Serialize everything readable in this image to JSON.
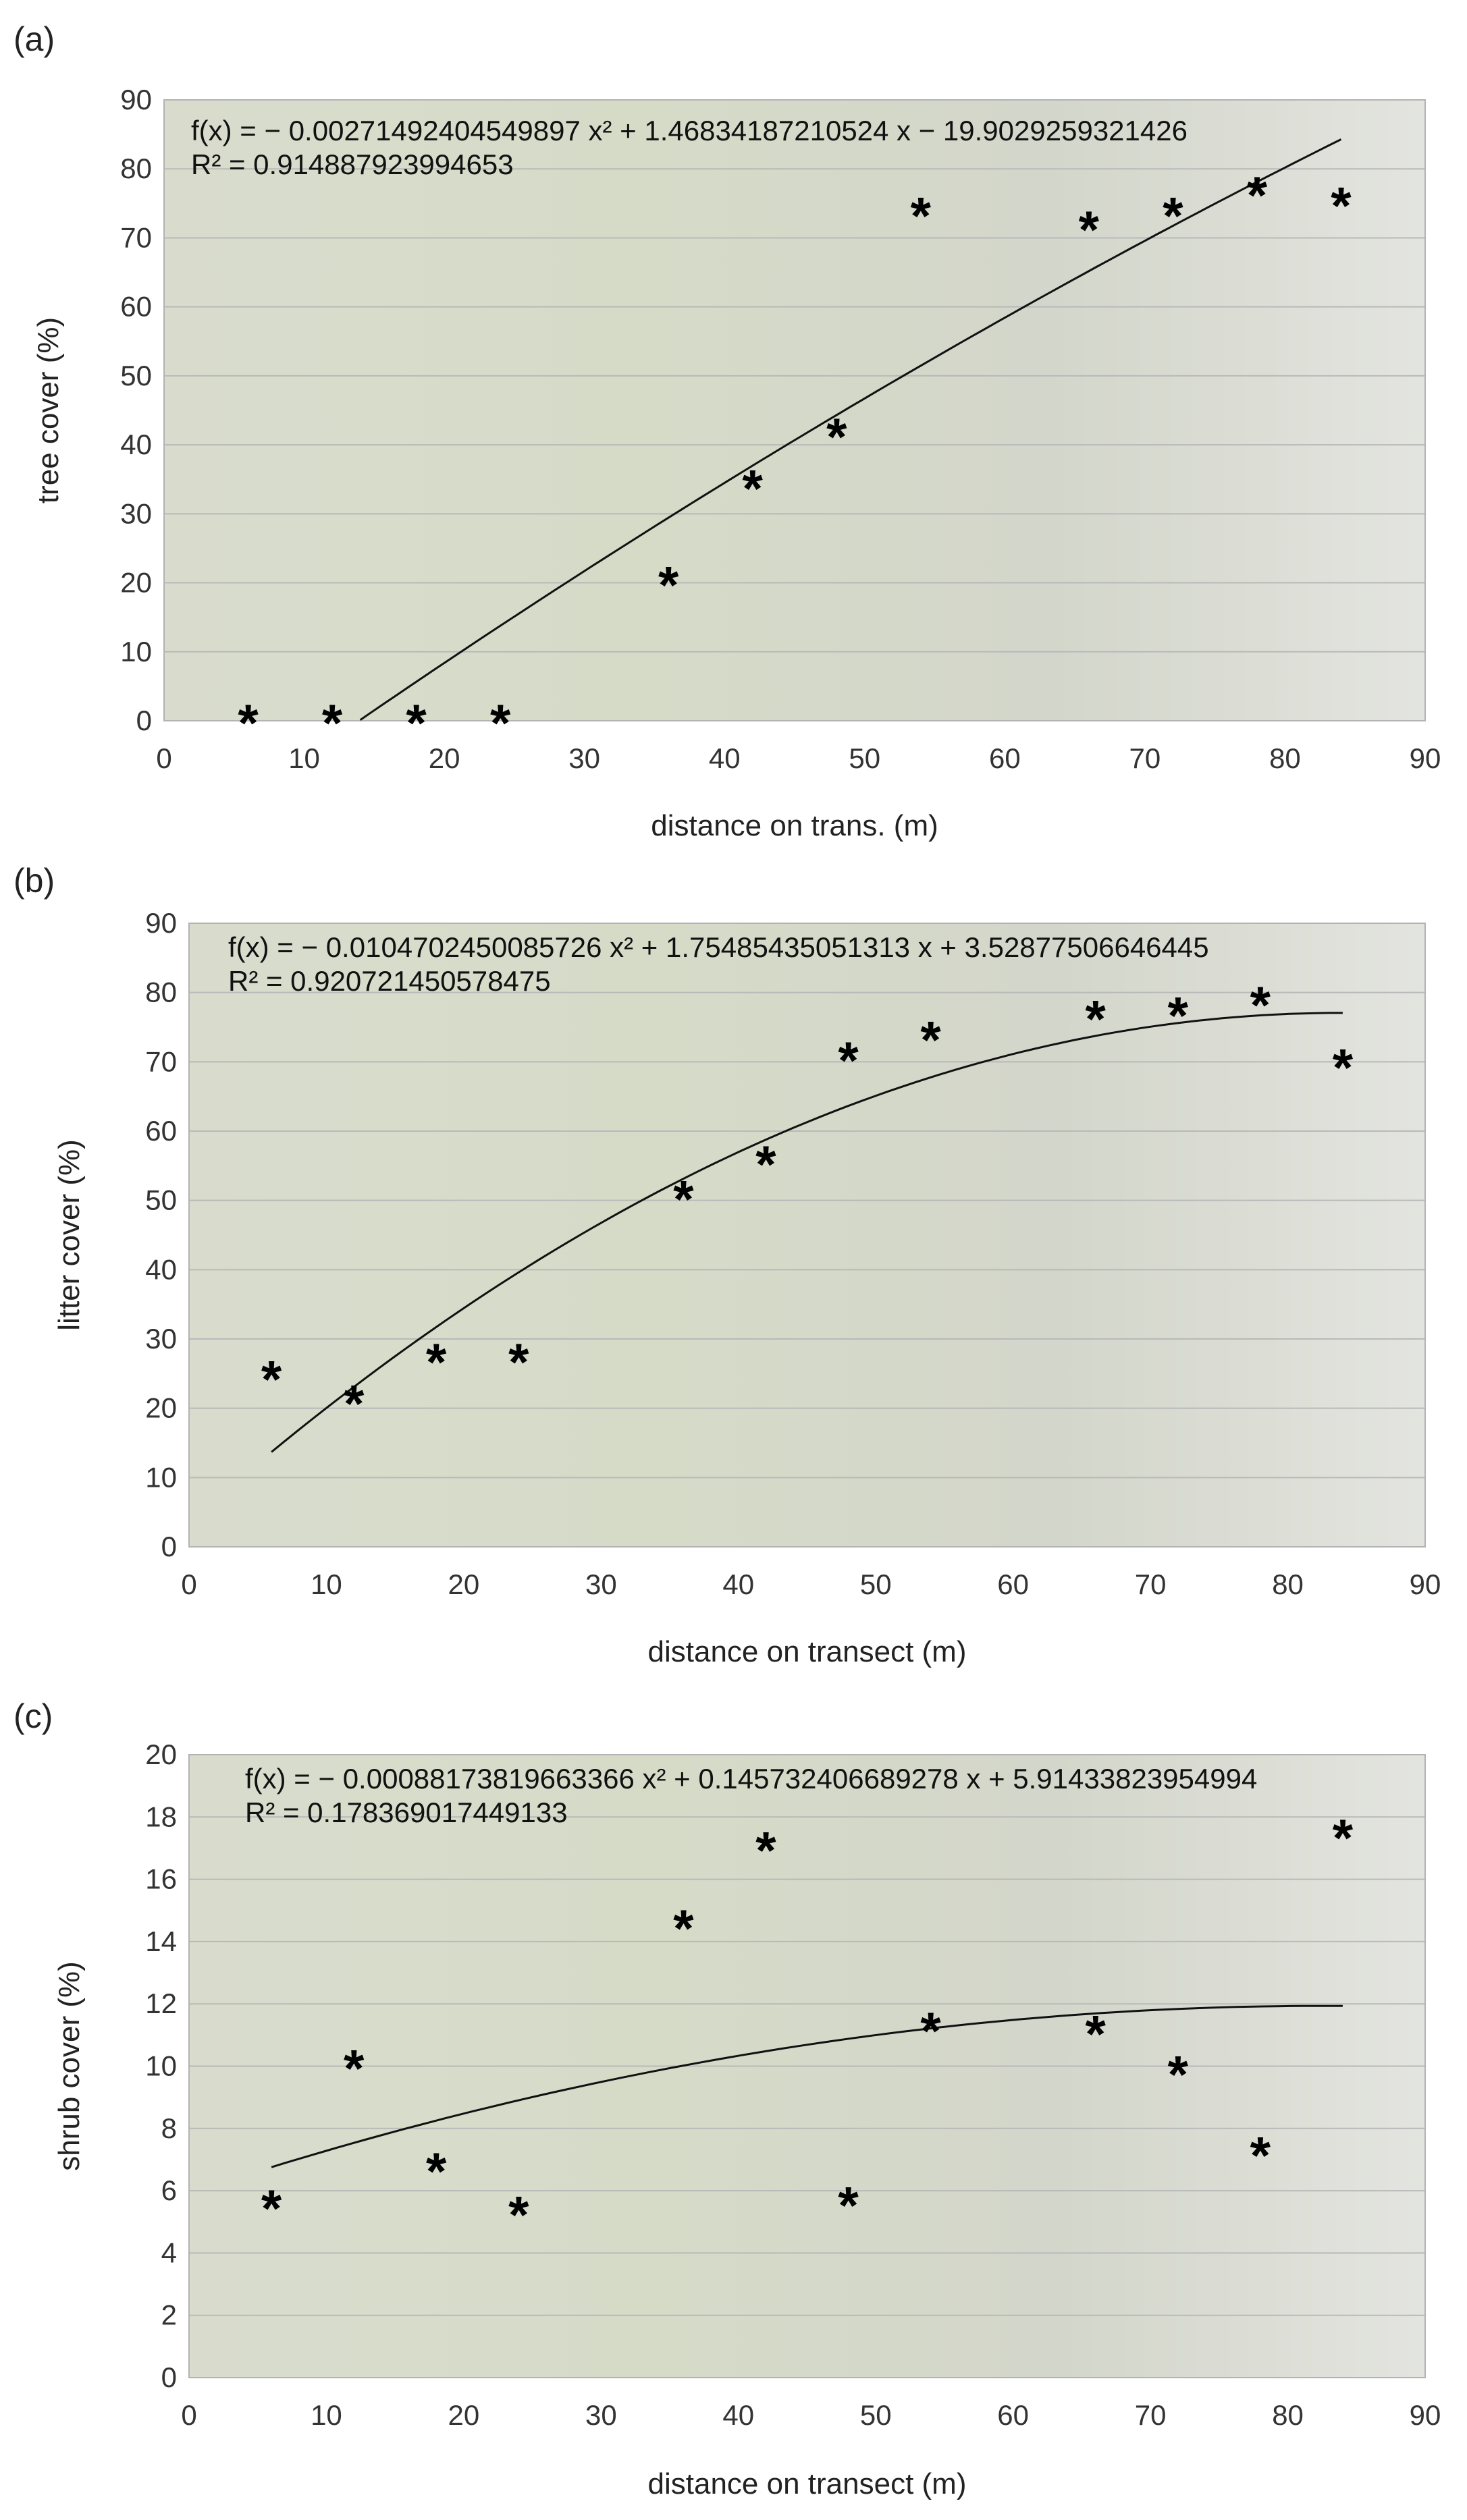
{
  "chart_data": [
    {
      "type": "scatter",
      "panel": "(a)",
      "xlabel": "distance on trans. (m)",
      "ylabel": "tree cover (%)",
      "xlim": [
        0,
        90
      ],
      "ylim": [
        0,
        90
      ],
      "xticks": [
        0,
        10,
        20,
        30,
        40,
        50,
        60,
        70,
        80,
        90
      ],
      "yticks": [
        0,
        10,
        20,
        30,
        40,
        50,
        60,
        70,
        80,
        90
      ],
      "grid": true,
      "x": [
        6,
        12,
        18,
        24,
        36,
        42,
        48,
        54,
        66,
        72,
        78,
        84
      ],
      "y": [
        0,
        0,
        0,
        0,
        20,
        34,
        41.5,
        73.5,
        71.5,
        73.5,
        76.5,
        75
      ],
      "equation": "f(x) = − 0.00271492404549897 x² + 1.46834187210524 x − 19.9029259321426",
      "r2": "R² = 0.914887923994653",
      "fit": {
        "a": -0.00271492404549897,
        "b": 1.46834187210524,
        "c": -19.9029259321426,
        "x_range": [
          14,
          84
        ]
      }
    },
    {
      "type": "scatter",
      "panel": "(b)",
      "xlabel": "distance on transect (m)",
      "ylabel": "litter cover (%)",
      "xlim": [
        0,
        90
      ],
      "ylim": [
        0,
        90
      ],
      "xticks": [
        0,
        10,
        20,
        30,
        40,
        50,
        60,
        70,
        80,
        90
      ],
      "yticks": [
        0,
        10,
        20,
        30,
        40,
        50,
        60,
        70,
        80,
        90
      ],
      "grid": true,
      "x": [
        6,
        12,
        18,
        24,
        36,
        42,
        48,
        54,
        66,
        72,
        78,
        84
      ],
      "y": [
        24.5,
        21,
        27,
        27,
        50.5,
        55.5,
        70.5,
        73.5,
        76.5,
        77,
        78.5,
        69.5
      ],
      "equation": "f(x) = − 0.0104702450085726 x² + 1.75485435051313 x + 3.52877506646445",
      "r2": "R² = 0.920721450578475",
      "fit": {
        "a": -0.0104702450085726,
        "b": 1.75485435051313,
        "c": 3.52877506646445,
        "x_range": [
          6,
          84
        ]
      }
    },
    {
      "type": "scatter",
      "panel": "(c)",
      "xlabel": "distance on transect (m)",
      "ylabel": "shrub cover (%)",
      "xlim": [
        0,
        90
      ],
      "ylim": [
        0,
        20
      ],
      "xticks": [
        0,
        10,
        20,
        30,
        40,
        50,
        60,
        70,
        80,
        90
      ],
      "yticks": [
        0,
        2,
        4,
        6,
        8,
        10,
        12,
        14,
        16,
        18,
        20
      ],
      "grid": true,
      "x": [
        6,
        12,
        18,
        24,
        36,
        42,
        48,
        54,
        66,
        72,
        78,
        84
      ],
      "y": [
        5.5,
        10,
        6.7,
        5.3,
        14.5,
        17,
        5.6,
        11.2,
        11.1,
        9.8,
        7.2,
        17.4
      ],
      "equation": "f(x) = − 0.00088173819663366 x² + 0.145732406689278 x + 5.91433823954994",
      "r2": "R² = 0.178369017449133",
      "fit": {
        "a": -0.00088173819663366,
        "b": 0.145732406689278,
        "c": 5.91433823954994,
        "x_range": [
          6,
          84
        ]
      }
    }
  ]
}
